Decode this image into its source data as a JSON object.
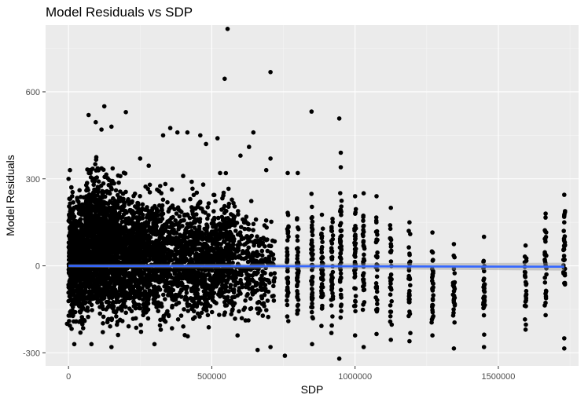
{
  "chart_data": {
    "type": "scatter",
    "title": "Model Residuals vs SDP",
    "xlabel": "SDP",
    "ylabel": "Model Residuals",
    "xlim": [
      -80000,
      1780000
    ],
    "ylim": [
      -345,
      830
    ],
    "x_ticks": [
      0,
      500000,
      1000000,
      1500000
    ],
    "x_tick_labels": [
      "0",
      "500000",
      "1000000",
      "1500000"
    ],
    "y_ticks": [
      -300,
      0,
      300,
      600
    ],
    "y_tick_labels": [
      "-300",
      "0",
      "300",
      "600"
    ],
    "grid": true,
    "legend": "none",
    "point_color": "#000000",
    "fit_line_color": "#3366ff",
    "fit_band_color": "#999999",
    "fit_line": {
      "x": [
        0,
        1730000
      ],
      "y": [
        0,
        -3
      ]
    },
    "series": [
      {
        "points": [
          [
            555000,
            817
          ],
          [
            545000,
            645
          ],
          [
            705000,
            668
          ],
          [
            848000,
            532
          ],
          [
            945000,
            508
          ],
          [
            125000,
            550
          ],
          [
            200000,
            530
          ],
          [
            70000,
            520
          ],
          [
            95000,
            495
          ],
          [
            115000,
            470
          ],
          [
            150000,
            480
          ],
          [
            330000,
            450
          ],
          [
            355000,
            475
          ],
          [
            380000,
            460
          ],
          [
            415000,
            460
          ],
          [
            460000,
            450
          ],
          [
            480000,
            420
          ],
          [
            520000,
            440
          ],
          [
            645000,
            460
          ],
          [
            690000,
            330
          ],
          [
            705000,
            370
          ],
          [
            765000,
            320
          ],
          [
            800000,
            320
          ],
          [
            950000,
            390
          ],
          [
            950000,
            340
          ],
          [
            1000000,
            240
          ],
          [
            1030000,
            250
          ],
          [
            1075000,
            240
          ],
          [
            1125000,
            200
          ],
          [
            1190000,
            150
          ],
          [
            1270000,
            115
          ],
          [
            1345000,
            75
          ],
          [
            1450000,
            100
          ],
          [
            1595000,
            70
          ],
          [
            1665000,
            180
          ],
          [
            1730000,
            245
          ],
          [
            1730000,
            150
          ],
          [
            1730000,
            -250
          ],
          [
            1730000,
            -285
          ],
          [
            1665000,
            -170
          ],
          [
            1595000,
            -220
          ],
          [
            1450000,
            -280
          ],
          [
            1345000,
            -285
          ],
          [
            1270000,
            -240
          ],
          [
            1190000,
            -260
          ],
          [
            1125000,
            -255
          ],
          [
            1075000,
            -235
          ],
          [
            1030000,
            -280
          ],
          [
            1000000,
            -240
          ],
          [
            945000,
            -320
          ],
          [
            850000,
            -270
          ],
          [
            755000,
            -310
          ],
          [
            705000,
            -280
          ],
          [
            660000,
            -290
          ],
          [
            590000,
            -240
          ],
          [
            300000,
            -270
          ],
          [
            150000,
            -280
          ],
          [
            80000,
            -270
          ],
          [
            20000,
            -270
          ],
          [
            10000,
            270
          ],
          [
            5000,
            330
          ],
          [
            0,
            300
          ],
          [
            -5000,
            -200
          ],
          [
            250000,
            370
          ],
          [
            280000,
            345
          ],
          [
            600000,
            380
          ],
          [
            630000,
            410
          ],
          [
            400000,
            310
          ],
          [
            430000,
            290
          ],
          [
            470000,
            280
          ]
        ],
        "bands": [
          {
            "x0": 0,
            "x1": 20000,
            "ymin": -265,
            "ymax": 330,
            "n": 220
          },
          {
            "x0": 20000,
            "x1": 60000,
            "ymin": -270,
            "ymax": 300,
            "n": 360
          },
          {
            "x0": 60000,
            "x1": 130000,
            "ymin": -275,
            "ymax": 420,
            "n": 780
          },
          {
            "x0": 130000,
            "x1": 200000,
            "ymin": -280,
            "ymax": 380,
            "n": 620
          },
          {
            "x0": 200000,
            "x1": 280000,
            "ymin": -270,
            "ymax": 330,
            "n": 560
          },
          {
            "x0": 280000,
            "x1": 360000,
            "ymin": -260,
            "ymax": 320,
            "n": 420
          },
          {
            "x0": 360000,
            "x1": 440000,
            "ymin": -260,
            "ymax": 300,
            "n": 340
          },
          {
            "x0": 440000,
            "x1": 520000,
            "ymin": -260,
            "ymax": 300,
            "n": 380
          },
          {
            "x0": 520000,
            "x1": 580000,
            "ymin": -250,
            "ymax": 330,
            "n": 300
          },
          {
            "x0": 580000,
            "x1": 680000,
            "ymin": -250,
            "ymax": 270,
            "n": 220
          },
          {
            "x0": 680000,
            "x1": 720000,
            "ymin": -220,
            "ymax": 220,
            "n": 60
          }
        ],
        "columns": [
          {
            "x": 765000,
            "ymin": -230,
            "ymax": 250,
            "n": 40
          },
          {
            "x": 800000,
            "ymin": -230,
            "ymax": 200,
            "n": 40
          },
          {
            "x": 850000,
            "ymin": -250,
            "ymax": 260,
            "n": 50
          },
          {
            "x": 885000,
            "ymin": -260,
            "ymax": 200,
            "n": 45
          },
          {
            "x": 920000,
            "ymin": -240,
            "ymax": 250,
            "n": 40
          },
          {
            "x": 950000,
            "ymin": -260,
            "ymax": 300,
            "n": 55
          },
          {
            "x": 1000000,
            "ymin": -230,
            "ymax": 230,
            "n": 45
          },
          {
            "x": 1030000,
            "ymin": -250,
            "ymax": 220,
            "n": 35
          },
          {
            "x": 1075000,
            "ymin": -220,
            "ymax": 200,
            "n": 35
          },
          {
            "x": 1125000,
            "ymin": -230,
            "ymax": 170,
            "n": 30
          },
          {
            "x": 1190000,
            "ymin": -240,
            "ymax": 140,
            "n": 30
          },
          {
            "x": 1270000,
            "ymin": -230,
            "ymax": 100,
            "n": 30
          },
          {
            "x": 1345000,
            "ymin": -260,
            "ymax": 60,
            "n": 28
          },
          {
            "x": 1450000,
            "ymin": -270,
            "ymax": 90,
            "n": 28
          },
          {
            "x": 1595000,
            "ymin": -210,
            "ymax": 60,
            "n": 24
          },
          {
            "x": 1665000,
            "ymin": -160,
            "ymax": 170,
            "n": 28
          },
          {
            "x": 1730000,
            "ymin": -110,
            "ymax": 230,
            "n": 32
          }
        ]
      }
    ]
  }
}
